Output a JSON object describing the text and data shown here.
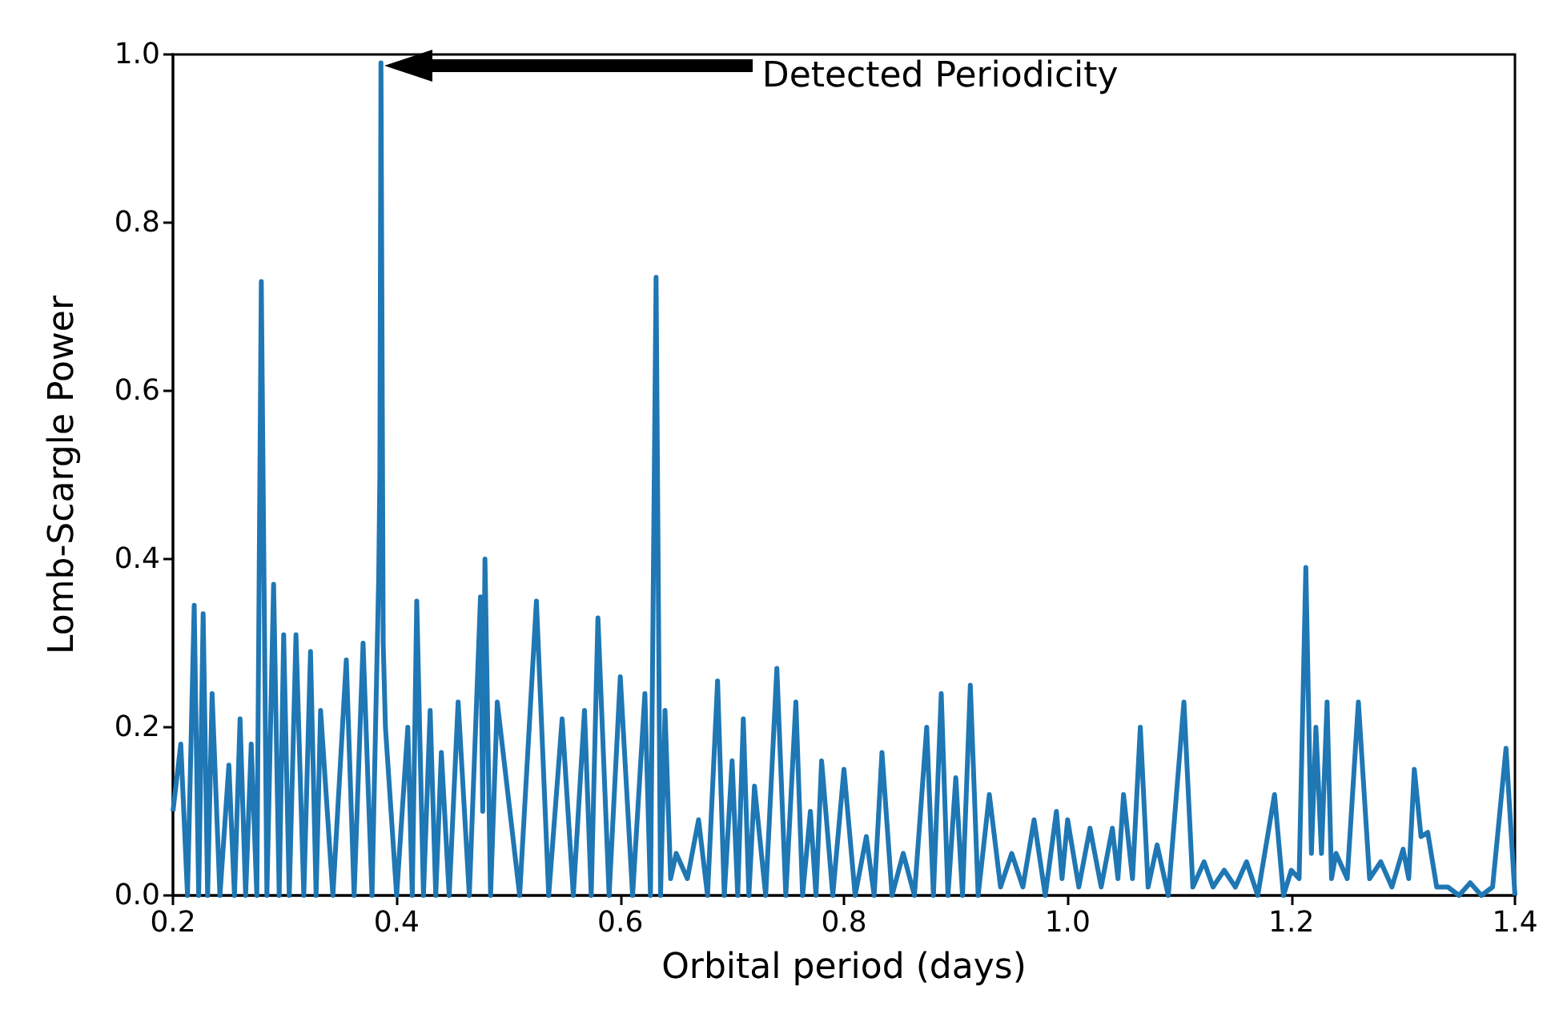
{
  "chart_data": {
    "type": "line",
    "xlabel": "Orbital period (days)",
    "ylabel": "Lomb-Scargle Power",
    "marker": "none",
    "line_style": "solid",
    "xlim": [
      0.2,
      1.4
    ],
    "xticks": [
      0.2,
      0.4,
      0.6,
      0.8,
      {
        "value": 1,
        "label": "1.0"
      },
      1.2,
      1.4
    ],
    "ylim": [
      0,
      1
    ],
    "yticks": [
      {
        "value": 0,
        "label": "0.0"
      },
      0.2,
      0.4,
      0.6,
      0.8,
      {
        "value": 1,
        "label": "1.0"
      }
    ],
    "annotations": [
      "Detected Periodicity"
    ],
    "x": [
      0.2,
      0.207,
      0.213,
      0.219,
      0.223,
      0.227,
      0.231,
      0.235,
      0.242,
      0.25,
      0.255,
      0.26,
      0.265,
      0.27,
      0.275,
      0.279,
      0.284,
      0.29,
      0.295,
      0.299,
      0.304,
      0.31,
      0.317,
      0.323,
      0.328,
      0.332,
      0.343,
      0.355,
      0.362,
      0.37,
      0.378,
      0.384,
      0.385,
      0.386,
      0.388,
      0.39,
      0.4,
      0.41,
      0.414,
      0.418,
      0.424,
      0.43,
      0.435,
      0.44,
      0.447,
      0.455,
      0.465,
      0.475,
      0.477,
      0.479,
      0.484,
      0.49,
      0.51,
      0.525,
      0.536,
      0.548,
      0.558,
      0.568,
      0.574,
      0.58,
      0.59,
      0.6,
      0.611,
      0.622,
      0.627,
      0.632,
      0.636,
      0.64,
      0.645,
      0.65,
      0.66,
      0.67,
      0.678,
      0.687,
      0.693,
      0.7,
      0.705,
      0.71,
      0.715,
      0.72,
      0.73,
      0.74,
      0.748,
      0.757,
      0.763,
      0.77,
      0.775,
      0.78,
      0.79,
      0.8,
      0.81,
      0.82,
      0.827,
      0.834,
      0.843,
      0.853,
      0.863,
      0.874,
      0.88,
      0.887,
      0.893,
      0.9,
      0.906,
      0.913,
      0.92,
      0.93,
      0.94,
      0.95,
      0.96,
      0.97,
      0.98,
      0.99,
      0.995,
      1.0,
      1.01,
      1.02,
      1.03,
      1.04,
      1.045,
      1.05,
      1.058,
      1.065,
      1.072,
      1.08,
      1.09,
      1.104,
      1.112,
      1.122,
      1.13,
      1.14,
      1.15,
      1.16,
      1.17,
      1.185,
      1.193,
      1.2,
      1.207,
      1.213,
      1.218,
      1.222,
      1.227,
      1.232,
      1.236,
      1.24,
      1.25,
      1.26,
      1.27,
      1.28,
      1.29,
      1.3,
      1.305,
      1.31,
      1.316,
      1.322,
      1.33,
      1.34,
      1.35,
      1.36,
      1.37,
      1.38,
      1.392,
      1.4
    ],
    "values": [
      0.1,
      0.18,
      0,
      0.345,
      0,
      0.335,
      0,
      0.24,
      0,
      0.155,
      0,
      0.21,
      0,
      0.18,
      0,
      0.73,
      0,
      0.37,
      0,
      0.31,
      0,
      0.31,
      0,
      0.29,
      0,
      0.22,
      0,
      0.28,
      0,
      0.3,
      0,
      0.38,
      0.5,
      0.99,
      0.3,
      0.2,
      0,
      0.2,
      0,
      0.35,
      0,
      0.22,
      0,
      0.17,
      0,
      0.23,
      0,
      0.355,
      0.1,
      0.4,
      0,
      0.23,
      0,
      0.35,
      0,
      0.21,
      0,
      0.22,
      0,
      0.33,
      0,
      0.26,
      0,
      0.24,
      0,
      0.735,
      0,
      0.22,
      0.02,
      0.05,
      0.02,
      0.09,
      0,
      0.255,
      0,
      0.16,
      0,
      0.21,
      0,
      0.13,
      0,
      0.27,
      0,
      0.23,
      0,
      0.1,
      0,
      0.16,
      0,
      0.15,
      0,
      0.07,
      0,
      0.17,
      0,
      0.05,
      0,
      0.2,
      0,
      0.24,
      0,
      0.14,
      0,
      0.25,
      0,
      0.12,
      0.01,
      0.05,
      0.01,
      0.09,
      0,
      0.1,
      0.02,
      0.09,
      0.01,
      0.08,
      0.01,
      0.08,
      0.02,
      0.12,
      0.02,
      0.2,
      0.01,
      0.06,
      0,
      0.23,
      0.01,
      0.04,
      0.01,
      0.03,
      0.01,
      0.04,
      0,
      0.12,
      0,
      0.03,
      0.02,
      0.39,
      0.05,
      0.2,
      0.05,
      0.23,
      0.02,
      0.05,
      0.02,
      0.23,
      0.02,
      0.04,
      0.01,
      0.055,
      0.02,
      0.15,
      0.07,
      0.075,
      0.01,
      0.01,
      0,
      0.015,
      0,
      0.01,
      0.175,
      0
    ]
  }
}
